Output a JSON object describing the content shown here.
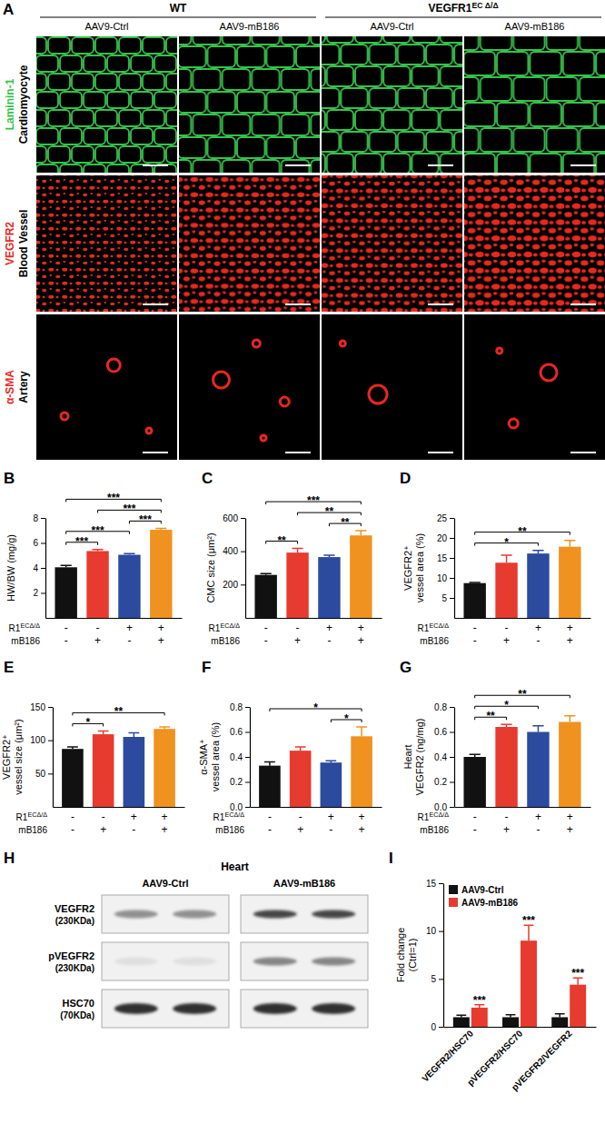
{
  "chart_data": [
    {
      "type": "bar",
      "title": "B",
      "ylabel": [
        "HW/BW (mg/g)"
      ],
      "categories": [
        null,
        null,
        null,
        null
      ],
      "values": [
        4.05,
        5.35,
        5.05,
        7.05
      ],
      "errors": [
        0.15,
        0.12,
        0.1,
        0.12
      ],
      "colors": [
        "#111111",
        "#e63b2e",
        "#2c4a9e",
        "#f0921f"
      ],
      "ylim": [
        0,
        8
      ],
      "yticks": [
        2,
        4,
        6,
        8
      ],
      "factors": [
        {
          "label": "R1",
          "label_sup": "ECΔ/Δ",
          "levels": [
            "-",
            "-",
            "+",
            "+"
          ]
        },
        {
          "label": "mB186",
          "levels": [
            "-",
            "+",
            "-",
            "+"
          ]
        }
      ],
      "significance": [
        {
          "from": 0,
          "to": 1,
          "label": "***"
        },
        {
          "from": 0,
          "to": 2,
          "label": "***"
        },
        {
          "from": 0,
          "to": 3,
          "label": "***"
        },
        {
          "from": 1,
          "to": 3,
          "label": "***"
        },
        {
          "from": 2,
          "to": 3,
          "label": "***"
        }
      ]
    },
    {
      "type": "bar",
      "title": "C",
      "ylabel": [
        "CMC size (μm²)"
      ],
      "categories": [
        null,
        null,
        null,
        null
      ],
      "values": [
        258,
        392,
        365,
        495
      ],
      "errors": [
        8,
        25,
        12,
        28
      ],
      "colors": [
        "#111111",
        "#e63b2e",
        "#2c4a9e",
        "#f0921f"
      ],
      "ylim": [
        0,
        600
      ],
      "yticks": [
        200,
        400,
        600
      ],
      "factors": [
        {
          "label": "R1",
          "label_sup": "ECΔ/Δ",
          "levels": [
            "-",
            "-",
            "+",
            "+"
          ]
        },
        {
          "label": "mB186",
          "levels": [
            "-",
            "+",
            "-",
            "+"
          ]
        }
      ],
      "significance": [
        {
          "from": 0,
          "to": 1,
          "label": "**"
        },
        {
          "from": 0,
          "to": 3,
          "label": "***"
        },
        {
          "from": 1,
          "to": 3,
          "label": "**"
        },
        {
          "from": 2,
          "to": 3,
          "label": "**"
        }
      ]
    },
    {
      "type": "bar",
      "title": "D",
      "ylabel": [
        "VEGFR2⁺",
        "vessel area (%)"
      ],
      "categories": [
        null,
        null,
        null,
        null
      ],
      "values": [
        8.7,
        13.8,
        16.1,
        17.8
      ],
      "errors": [
        0.15,
        1.9,
        0.8,
        1.6
      ],
      "colors": [
        "#111111",
        "#e63b2e",
        "#2c4a9e",
        "#f0921f"
      ],
      "ylim": [
        0,
        25
      ],
      "yticks": [
        5,
        10,
        15,
        20,
        25
      ],
      "factors": [
        {
          "label": "R1",
          "label_sup": "ECΔ/Δ",
          "levels": [
            "-",
            "-",
            "+",
            "+"
          ]
        },
        {
          "label": "mB186",
          "levels": [
            "-",
            "+",
            "-",
            "+"
          ]
        }
      ],
      "significance": [
        {
          "from": 0,
          "to": 2,
          "label": "*"
        },
        {
          "from": 0,
          "to": 3,
          "label": "**"
        }
      ]
    },
    {
      "type": "bar",
      "title": "E",
      "ylabel": [
        "VEGFR2⁺",
        "vessel size (μm²)"
      ],
      "categories": [
        null,
        null,
        null,
        null
      ],
      "values": [
        87,
        109,
        105,
        117
      ],
      "errors": [
        3,
        5,
        6,
        3
      ],
      "colors": [
        "#111111",
        "#e63b2e",
        "#2c4a9e",
        "#f0921f"
      ],
      "ylim": [
        0,
        150
      ],
      "yticks": [
        50,
        100,
        150
      ],
      "factors": [
        {
          "label": "R1",
          "label_sup": "ECΔ/Δ",
          "levels": [
            "-",
            "-",
            "+",
            "+"
          ]
        },
        {
          "label": "mB186",
          "levels": [
            "-",
            "+",
            "-",
            "+"
          ]
        }
      ],
      "significance": [
        {
          "from": 0,
          "to": 1,
          "label": "*"
        },
        {
          "from": 0,
          "to": 3,
          "label": "**"
        }
      ]
    },
    {
      "type": "bar",
      "title": "F",
      "ylabel": [
        "α-SMA⁺",
        "vessel area (%)"
      ],
      "categories": [
        null,
        null,
        null,
        null
      ],
      "values": [
        0.33,
        0.45,
        0.355,
        0.565
      ],
      "errors": [
        0.03,
        0.03,
        0.015,
        0.075
      ],
      "colors": [
        "#111111",
        "#e63b2e",
        "#2c4a9e",
        "#f0921f"
      ],
      "ylim": [
        0,
        0.8
      ],
      "yticks": [
        {
          "value": 0,
          "label": "0.0"
        },
        0.2,
        0.4,
        0.6,
        0.8
      ],
      "factors": [
        {
          "label": "R1",
          "label_sup": "ECΔ/Δ",
          "levels": [
            "-",
            "-",
            "+",
            "+"
          ]
        },
        {
          "label": "mB186",
          "levels": [
            "-",
            "+",
            "-",
            "+"
          ]
        }
      ],
      "significance": [
        {
          "from": 0,
          "to": 3,
          "label": "*"
        },
        {
          "from": 2,
          "to": 3,
          "label": "*"
        }
      ]
    },
    {
      "type": "bar",
      "title": "G",
      "ylabel": [
        "Heart",
        "VEGFR2 (ng/mg)"
      ],
      "categories": [
        null,
        null,
        null,
        null
      ],
      "values": [
        0.4,
        0.64,
        0.6,
        0.68
      ],
      "errors": [
        0.02,
        0.02,
        0.05,
        0.05
      ],
      "colors": [
        "#111111",
        "#e63b2e",
        "#2c4a9e",
        "#f0921f"
      ],
      "ylim": [
        0,
        0.8
      ],
      "yticks": [
        {
          "value": 0,
          "label": "0.0"
        },
        0.2,
        0.4,
        0.6,
        0.8
      ],
      "factors": [
        {
          "label": "R1",
          "label_sup": "ECΔ/Δ",
          "levels": [
            "-",
            "-",
            "+",
            "+"
          ]
        },
        {
          "label": "mB186",
          "levels": [
            "-",
            "+",
            "-",
            "+"
          ]
        }
      ],
      "significance": [
        {
          "from": 0,
          "to": 1,
          "label": "**"
        },
        {
          "from": 0,
          "to": 2,
          "label": "*"
        },
        {
          "from": 0,
          "to": 3,
          "label": "**"
        }
      ]
    },
    {
      "type": "bar",
      "title": "I",
      "ylabel": [
        "Fold change",
        "(Ctrl=1)"
      ],
      "categories": [
        "VEGFR2/HSC70",
        "pVEGFR2/HSC70",
        "pVEGFR2/VEGFR2"
      ],
      "series": [
        {
          "name": "AAV9-Ctrl",
          "color": "#111111",
          "values": [
            1,
            1,
            1
          ],
          "errors": [
            0.2,
            0.25,
            0.35
          ]
        },
        {
          "name": "AAV9-mB186",
          "color": "#e63b2e",
          "values": [
            2.0,
            9.0,
            4.4
          ],
          "errors": [
            0.3,
            1.6,
            0.7
          ],
          "significance": [
            "***",
            "***",
            "***"
          ]
        }
      ],
      "ylim": [
        0,
        15
      ],
      "yticks": [
        0,
        5,
        10,
        15
      ],
      "legend": "upper left"
    }
  ],
  "panel_a": {
    "letter": "A",
    "groups": [
      {
        "label": "WT",
        "columns": [
          0,
          1
        ]
      },
      {
        "label": "VEGFR1",
        "label_sup": "EC Δ/Δ",
        "columns": [
          2,
          3
        ]
      }
    ],
    "columns": [
      "AAV9-Ctrl",
      "AAV9-mB186",
      "AAV9-Ctrl",
      "AAV9-mB186"
    ],
    "rows": [
      {
        "stain": "Laminin-1",
        "target": "Cardiomyocyte",
        "color": "#35c24a"
      },
      {
        "stain": "VEGFR2",
        "target": "Blood Vessel",
        "color": "#e8281e"
      },
      {
        "stain": "α-SMA",
        "target": "Artery",
        "color": "#e8281e"
      }
    ]
  },
  "panel_h": {
    "letter": "H",
    "title": "Heart",
    "groups": [
      "AAV9-Ctrl",
      "AAV9-mB186"
    ],
    "rows": [
      {
        "name": "VEGFR2",
        "size": "(230KDa)"
      },
      {
        "name": "pVEGFR2",
        "size": "(230KDa)"
      },
      {
        "name": "HSC70",
        "size": "(70KDa)"
      }
    ]
  }
}
